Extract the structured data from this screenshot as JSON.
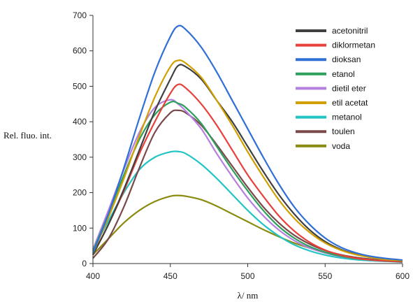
{
  "chart_data": {
    "type": "line",
    "title": "",
    "xlabel": "λ/ nm",
    "ylabel": "Rel. fluo. int.",
    "xlim": [
      400,
      600
    ],
    "ylim": [
      0,
      700
    ],
    "xticks": [
      400,
      450,
      500,
      550,
      600
    ],
    "yticks": [
      0,
      100,
      200,
      300,
      400,
      500,
      600,
      700
    ],
    "grid": false,
    "legend_position": "top-right",
    "series": [
      {
        "name": "acetonitril",
        "color": "#404040",
        "x": [
          400,
          410,
          420,
          430,
          440,
          450,
          455,
          460,
          470,
          480,
          490,
          500,
          510,
          520,
          530,
          540,
          550,
          560,
          570,
          580,
          590,
          600
        ],
        "y": [
          25,
          110,
          210,
          320,
          430,
          520,
          558,
          555,
          520,
          460,
          400,
          330,
          260,
          195,
          140,
          95,
          62,
          40,
          26,
          17,
          11,
          7
        ]
      },
      {
        "name": "diklormetan",
        "color": "#e8403a",
        "x": [
          400,
          410,
          420,
          430,
          440,
          450,
          455,
          460,
          470,
          480,
          490,
          500,
          510,
          520,
          530,
          540,
          550,
          560,
          570,
          580,
          590,
          600
        ],
        "y": [
          25,
          110,
          205,
          310,
          400,
          480,
          505,
          495,
          450,
          390,
          320,
          250,
          190,
          135,
          92,
          60,
          38,
          24,
          15,
          10,
          7,
          5
        ]
      },
      {
        "name": "dioksan",
        "color": "#2f6fd6",
        "x": [
          400,
          410,
          420,
          430,
          440,
          450,
          455,
          460,
          470,
          480,
          490,
          500,
          510,
          520,
          530,
          540,
          550,
          560,
          570,
          580,
          590,
          600
        ],
        "y": [
          30,
          140,
          270,
          410,
          540,
          640,
          670,
          660,
          610,
          540,
          460,
          380,
          300,
          225,
          160,
          110,
          72,
          46,
          30,
          20,
          14,
          10
        ]
      },
      {
        "name": "etanol",
        "color": "#2ea05e",
        "x": [
          400,
          410,
          420,
          430,
          440,
          450,
          455,
          460,
          470,
          480,
          490,
          500,
          510,
          520,
          530,
          540,
          550,
          560,
          570,
          580,
          590,
          600
        ],
        "y": [
          35,
          140,
          250,
          350,
          420,
          455,
          452,
          440,
          395,
          330,
          265,
          205,
          150,
          105,
          72,
          48,
          32,
          21,
          14,
          10,
          7,
          5
        ]
      },
      {
        "name": "dietil eter",
        "color": "#b57fe0",
        "x": [
          400,
          410,
          420,
          430,
          440,
          450,
          455,
          460,
          470,
          480,
          490,
          500,
          510,
          520,
          530,
          540,
          550,
          560,
          570,
          580,
          590,
          600
        ],
        "y": [
          40,
          150,
          265,
          370,
          440,
          462,
          450,
          430,
          380,
          310,
          245,
          185,
          135,
          95,
          65,
          44,
          30,
          20,
          14,
          10,
          7,
          5
        ]
      },
      {
        "name": "etil acetat",
        "color": "#d1a000",
        "x": [
          400,
          410,
          420,
          430,
          440,
          450,
          455,
          460,
          470,
          480,
          490,
          500,
          510,
          520,
          530,
          540,
          550,
          560,
          570,
          580,
          590,
          600
        ],
        "y": [
          30,
          130,
          240,
          360,
          470,
          555,
          573,
          565,
          525,
          460,
          390,
          315,
          245,
          180,
          128,
          88,
          58,
          38,
          25,
          17,
          11,
          8
        ]
      },
      {
        "name": "metanol",
        "color": "#22c4c4",
        "x": [
          400,
          410,
          420,
          430,
          440,
          450,
          455,
          460,
          470,
          480,
          490,
          500,
          510,
          520,
          530,
          540,
          550,
          560,
          570,
          580,
          590,
          600
        ],
        "y": [
          40,
          120,
          200,
          265,
          300,
          315,
          316,
          310,
          280,
          240,
          195,
          150,
          110,
          78,
          53,
          36,
          24,
          16,
          11,
          8,
          6,
          4
        ]
      },
      {
        "name": "toulen",
        "color": "#7a4a4a",
        "x": [
          400,
          410,
          420,
          430,
          440,
          450,
          455,
          460,
          470,
          480,
          490,
          500,
          510,
          520,
          530,
          540,
          550,
          560,
          570,
          580,
          590,
          600
        ],
        "y": [
          15,
          70,
          160,
          270,
          370,
          425,
          432,
          425,
          390,
          335,
          275,
          215,
          160,
          115,
          80,
          55,
          37,
          25,
          17,
          12,
          8,
          6
        ]
      },
      {
        "name": "voda",
        "color": "#8b8b12",
        "x": [
          400,
          410,
          420,
          430,
          440,
          450,
          455,
          460,
          470,
          480,
          490,
          500,
          510,
          520,
          530,
          540,
          550,
          560,
          570,
          580,
          590,
          600
        ],
        "y": [
          25,
          70,
          115,
          150,
          175,
          190,
          192,
          190,
          180,
          162,
          140,
          118,
          96,
          76,
          58,
          44,
          32,
          24,
          17,
          12,
          9,
          7
        ]
      }
    ]
  }
}
